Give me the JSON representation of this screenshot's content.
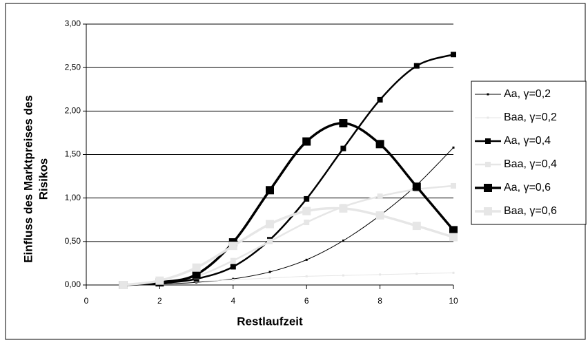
{
  "chart_data": {
    "type": "line",
    "xlabel": "Restlaufzeit",
    "ylabel": [
      "Einfluss des Marktpreises des",
      "Risikos"
    ],
    "x": [
      1,
      2,
      3,
      4,
      5,
      6,
      7,
      8,
      9,
      10
    ],
    "xlim": [
      0,
      10
    ],
    "xticks": [
      0,
      2,
      4,
      6,
      8,
      10
    ],
    "ylim": [
      0,
      3
    ],
    "yticks": [
      {
        "value": 0,
        "label": "0,00"
      },
      {
        "value": 0.5,
        "label": "0,50"
      },
      {
        "value": 1,
        "label": "1,00"
      },
      {
        "value": 1.5,
        "label": "1,50"
      },
      {
        "value": 2,
        "label": "2,00"
      },
      {
        "value": 2.5,
        "label": "2,50"
      },
      {
        "value": 3,
        "label": "3,00"
      }
    ],
    "grid": true,
    "legend": "right",
    "series": [
      {
        "name": "Aa, γ=0,2",
        "color": "#000000",
        "line_width": 1,
        "marker_size": 3,
        "values": [
          0,
          0.01,
          0.03,
          0.07,
          0.15,
          0.29,
          0.51,
          0.8,
          1.15,
          1.58
        ]
      },
      {
        "name": "Baa,  γ=0,2",
        "color": "#e6e6e6",
        "line_width": 1,
        "marker_size": 3,
        "values": [
          0,
          0.02,
          0.04,
          0.06,
          0.08,
          0.1,
          0.11,
          0.12,
          0.13,
          0.14
        ]
      },
      {
        "name": "Aa, γ=0,4",
        "color": "#000000",
        "line_width": 2.5,
        "marker_size": 8,
        "values": [
          0,
          0.02,
          0.07,
          0.21,
          0.52,
          0.99,
          1.57,
          2.13,
          2.52,
          2.65
        ]
      },
      {
        "name": "Baa,  γ=0,4",
        "color": "#e6e6e6",
        "line_width": 2.5,
        "marker_size": 8,
        "values": [
          0,
          0.03,
          0.1,
          0.28,
          0.5,
          0.72,
          0.9,
          1.02,
          1.1,
          1.14
        ]
      },
      {
        "name": "Aa, γ=0,6",
        "color": "#000000",
        "line_width": 3.5,
        "marker_size": 12,
        "values": [
          0,
          0.03,
          0.12,
          0.49,
          1.09,
          1.65,
          1.86,
          1.62,
          1.13,
          0.63
        ]
      },
      {
        "name": "Baa,  γ=0,6",
        "color": "#e6e6e6",
        "line_width": 3.5,
        "marker_size": 12,
        "values": [
          0,
          0.05,
          0.2,
          0.45,
          0.7,
          0.85,
          0.88,
          0.8,
          0.68,
          0.55
        ]
      }
    ]
  }
}
